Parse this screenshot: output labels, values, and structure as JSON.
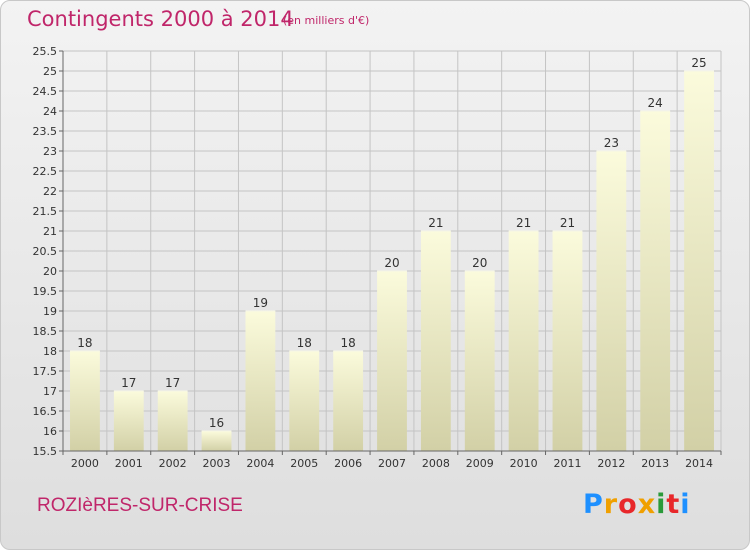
{
  "header": {
    "title": "Contingents 2000 à 2014",
    "subtitle": "(en milliers d'€)"
  },
  "footer": {
    "commune": "ROZIèRES-SUR-CRISE",
    "logo_letters": [
      "P",
      "r",
      "o",
      "x",
      "i",
      "t",
      "i"
    ],
    "logo_colors": [
      "#1e90ff",
      "#f0a000",
      "#e8272a",
      "#f0a000",
      "#2a9a3a",
      "#e8272a",
      "#1e90ff"
    ]
  },
  "colors": {
    "accent": "#c0266a",
    "bar_top": "#fbfbdc",
    "bar_bottom": "#d2d0a6",
    "axis": "#666666",
    "grid": "#c4c4c4"
  },
  "chart_data": {
    "type": "bar",
    "categories": [
      "2000",
      "2001",
      "2002",
      "2003",
      "2004",
      "2005",
      "2006",
      "2007",
      "2008",
      "2009",
      "2010",
      "2011",
      "2012",
      "2013",
      "2014"
    ],
    "values": [
      18,
      17,
      17,
      16,
      19,
      18,
      18,
      20,
      21,
      20,
      21,
      21,
      23,
      24,
      25
    ],
    "data_labels": [
      "18",
      "17",
      "17",
      "16",
      "19",
      "18",
      "18",
      "20",
      "21",
      "20",
      "21",
      "21",
      "23",
      "24",
      "25"
    ],
    "ylim": [
      15.5,
      25.5
    ],
    "yticks": [
      "15.5",
      "16",
      "16.5",
      "17",
      "17.5",
      "18",
      "18.5",
      "19",
      "19.5",
      "20",
      "20.5",
      "21",
      "21.5",
      "22",
      "22.5",
      "23",
      "23.5",
      "24",
      "24.5",
      "25",
      "25.5"
    ],
    "grid": true
  }
}
